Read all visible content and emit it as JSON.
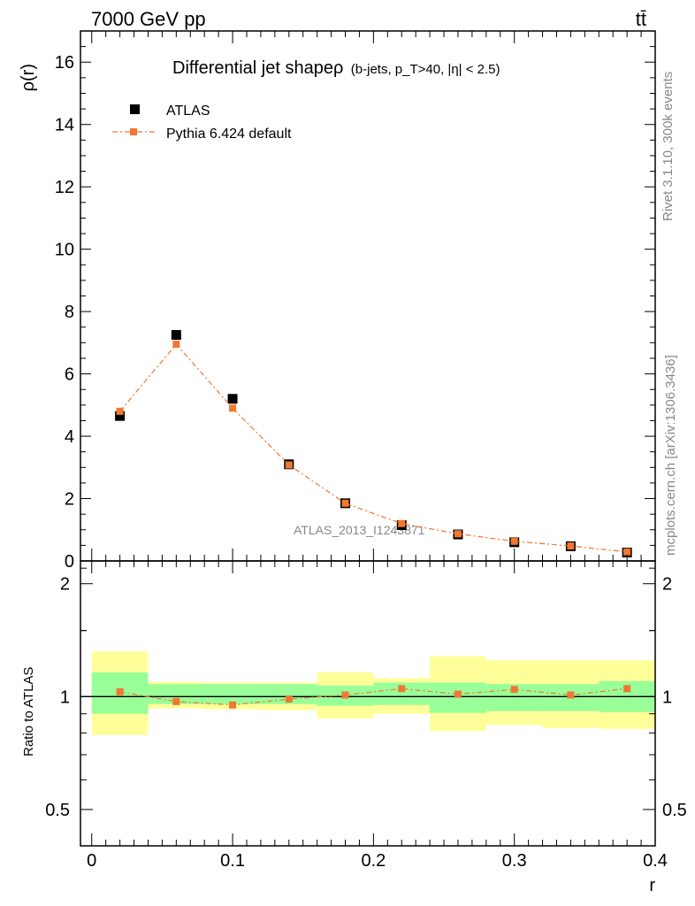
{
  "header": {
    "energy_label": "7000 GeV pp",
    "process_label": "tt̄"
  },
  "side_labels": {
    "rivet": "Rivet 3.1.10,  300k events",
    "mcplots": "mcplots.cern.ch [arXiv:1306.3436]"
  },
  "watermark": "ATLAS_2013_I1243871",
  "chart_data": [
    {
      "type": "scatter",
      "title_main": "Differential jet shapeρ",
      "title_cuts": "(b-jets, p_T>40, |η| < 2.5)",
      "ylabel": "ρ(r)",
      "xlim": [
        -0.008,
        0.4
      ],
      "ylim": [
        0,
        17
      ],
      "yticks": [
        0,
        2,
        4,
        6,
        8,
        10,
        12,
        14,
        16
      ],
      "xticks": [
        0,
        0.1,
        0.2,
        0.3,
        0.4
      ],
      "legend_position": "top-left",
      "series": [
        {
          "name": "ATLAS",
          "color": "#000000",
          "marker": "square",
          "x": [
            0.02,
            0.06,
            0.1,
            0.14,
            0.18,
            0.22,
            0.26,
            0.3,
            0.34,
            0.38
          ],
          "values": [
            4.65,
            7.25,
            5.2,
            3.1,
            1.85,
            1.15,
            0.85,
            0.6,
            0.47,
            0.27
          ]
        },
        {
          "name": "Pythia 6.424 default",
          "color": "#f07832",
          "marker": "square-line",
          "x": [
            0.02,
            0.06,
            0.1,
            0.14,
            0.18,
            0.22,
            0.26,
            0.3,
            0.34,
            0.38
          ],
          "values": [
            4.8,
            6.95,
            4.9,
            3.08,
            1.85,
            1.2,
            0.87,
            0.63,
            0.48,
            0.29
          ]
        }
      ]
    },
    {
      "type": "scatter",
      "ylabel": "Ratio to ATLAS",
      "xlabel": "r",
      "log_y": true,
      "xlim": [
        -0.008,
        0.4
      ],
      "ylim": [
        0.4,
        2.3
      ],
      "yticks": [
        0.5,
        1,
        2
      ],
      "xticks": [
        0,
        0.1,
        0.2,
        0.3,
        0.4
      ],
      "x_edges": [
        0,
        0.04,
        0.08,
        0.12,
        0.16,
        0.2,
        0.24,
        0.28,
        0.32,
        0.36,
        0.4
      ],
      "uncertainty_bands": [
        {
          "name": "stat",
          "color": "#99ff99",
          "low": [
            0.9,
            0.955,
            0.955,
            0.955,
            0.945,
            0.95,
            0.905,
            0.915,
            0.915,
            0.91
          ],
          "high": [
            1.16,
            1.08,
            1.08,
            1.08,
            1.07,
            1.09,
            1.09,
            1.08,
            1.08,
            1.1
          ]
        },
        {
          "name": "total",
          "color": "#ffff99",
          "low": [
            0.79,
            0.93,
            0.925,
            0.92,
            0.875,
            0.9,
            0.81,
            0.84,
            0.825,
            0.82
          ],
          "high": [
            1.32,
            1.095,
            1.09,
            1.09,
            1.16,
            1.12,
            1.28,
            1.25,
            1.25,
            1.25
          ]
        }
      ],
      "series": [
        {
          "name": "Pythia 6.424 default",
          "color": "#f07832",
          "x": [
            0.02,
            0.06,
            0.1,
            0.14,
            0.18,
            0.22,
            0.26,
            0.3,
            0.34,
            0.38
          ],
          "values": [
            1.03,
            0.97,
            0.95,
            0.985,
            1.01,
            1.05,
            1.015,
            1.045,
            1.01,
            1.05
          ]
        }
      ]
    }
  ]
}
